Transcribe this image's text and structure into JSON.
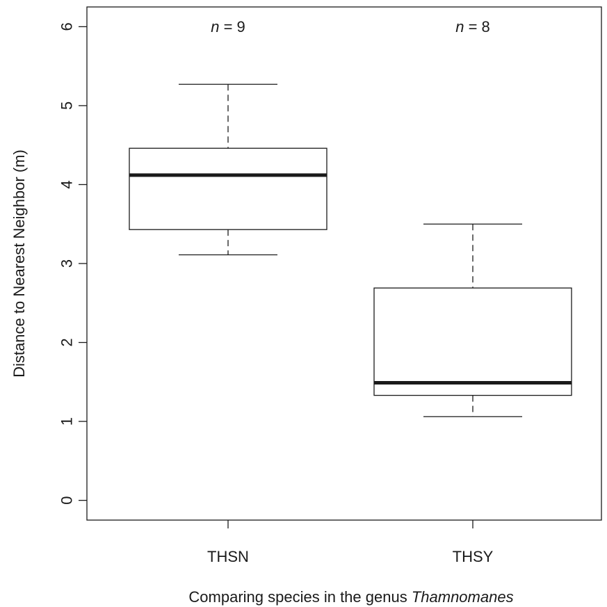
{
  "chart_data": {
    "type": "box",
    "xlabel": {
      "prefix": "Comparing species in the genus ",
      "italic": "Thamnomanes"
    },
    "ylabel": "Distance to Nearest Neighbor (m)",
    "ylim": [
      -0.25,
      6.25
    ],
    "yticks": [
      0,
      1,
      2,
      3,
      4,
      5,
      6
    ],
    "yticklabels": [
      "0",
      "1",
      "2",
      "3",
      "4",
      "5",
      "6"
    ],
    "grid": false,
    "categories": [
      "THSN",
      "THSY"
    ],
    "boxes": [
      {
        "category": "THSN",
        "n_label": {
          "var": "n",
          "text": " = 9"
        },
        "whisker_low": 3.11,
        "q1": 3.43,
        "median": 4.12,
        "q3": 4.46,
        "whisker_high": 5.27
      },
      {
        "category": "THSY",
        "n_label": {
          "var": "n",
          "text": " = 8"
        },
        "whisker_low": 1.06,
        "q1": 1.33,
        "median": 1.49,
        "q3": 2.69,
        "whisker_high": 3.5
      }
    ]
  }
}
